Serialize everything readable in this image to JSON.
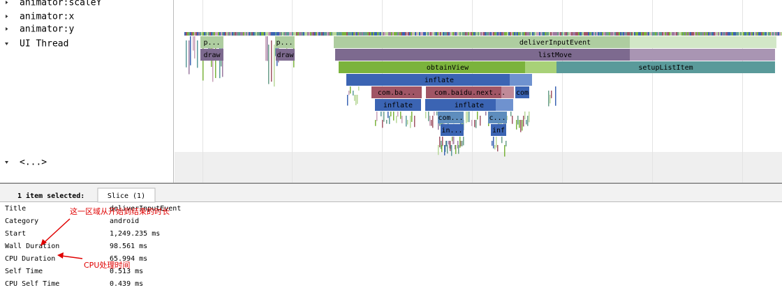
{
  "tracks": [
    "animator:scaleY",
    "animator:x",
    "animator:y",
    "UI Thread",
    "<...>"
  ],
  "slices": [
    "p...",
    "draw",
    "p...",
    "draw",
    "deliverInputEvent",
    "listMove",
    "obtainView",
    "setupListItem",
    "inflate",
    "com.ba...",
    "com.baidu.next...",
    "com",
    "inflate",
    "inflate",
    "com...",
    "c...",
    "in...",
    "inf"
  ],
  "selection": {
    "count_label": "1 item selected:",
    "tab": "Slice (1)"
  },
  "details": [
    [
      "Title",
      "deliverInputEvent"
    ],
    [
      "Category",
      "android"
    ],
    [
      "Start",
      "1,249.235 ms"
    ],
    [
      "Wall Duration",
      "98.561 ms"
    ],
    [
      "CPU Duration",
      "65.994 ms"
    ],
    [
      "Self Time",
      "0.513 ms"
    ],
    [
      "CPU Self Time",
      "0.439 ms"
    ]
  ],
  "annotations": [
    "这一区域从开始到结束的时长",
    "CPU处理时间"
  ]
}
